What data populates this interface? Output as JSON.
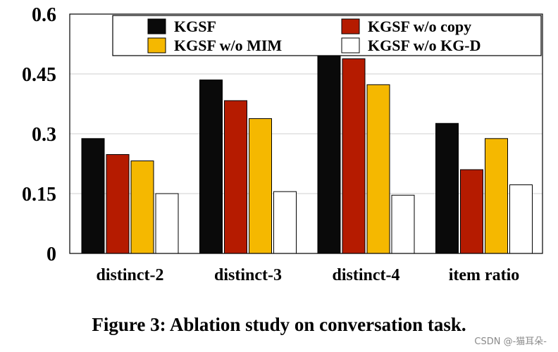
{
  "chart_data": {
    "type": "bar",
    "title": "",
    "xlabel": "",
    "ylabel": "",
    "ylim": [
      0,
      0.6
    ],
    "yticks": [
      0,
      0.15,
      0.3,
      0.45,
      0.6
    ],
    "ytick_labels": [
      "0",
      "0.15",
      "0.3",
      "0.45",
      "0.6"
    ],
    "grid": "horizontal",
    "legend_position": "top",
    "categories": [
      "distinct-2",
      "distinct-3",
      "distinct-4",
      "item ratio"
    ],
    "series": [
      {
        "name": "KGSF",
        "color": "#0a0a0a",
        "values": [
          0.288,
          0.435,
          0.52,
          0.326
        ]
      },
      {
        "name": "KGSF w/o copy",
        "color": "#b51b00",
        "values": [
          0.248,
          0.383,
          0.488,
          0.21
        ]
      },
      {
        "name": "KGSF w/o MIM",
        "color": "#f5b800",
        "values": [
          0.232,
          0.338,
          0.423,
          0.288
        ]
      },
      {
        "name": "KGSF w/o KG-D",
        "color": "#ffffff",
        "values": [
          0.15,
          0.155,
          0.146,
          0.172
        ]
      }
    ]
  },
  "caption": "Figure 3: Ablation study on conversation task.",
  "watermark": "CSDN @-猫耳朵-"
}
